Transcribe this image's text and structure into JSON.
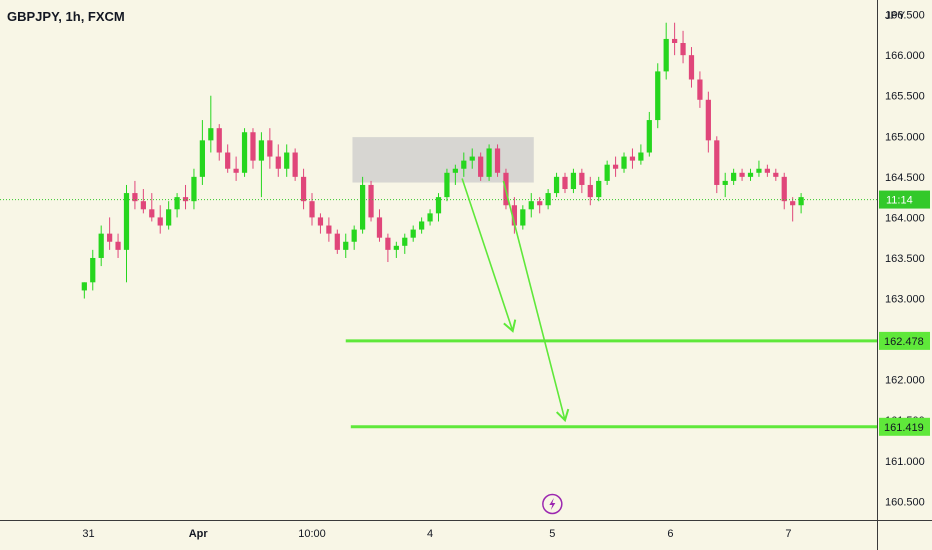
{
  "header": {
    "title": "GBPJPY, 1h, FXCM"
  },
  "icons": {
    "event_marker": "lightning-icon"
  },
  "colors": {
    "background": "#f8f6e6",
    "up": "#26d61e",
    "down": "#e0467a",
    "zone": "#d3d3cf",
    "level_line": "#5fe83a",
    "current_price_line": "#33c92a"
  },
  "chart_data": {
    "type": "candlestick",
    "title": "GBPJPY, 1h, FXCM",
    "ylabel": "JPY",
    "ylim": [
      160.27,
      166.68
    ],
    "yticks": [
      "166.500",
      "166.000",
      "165.500",
      "165.000",
      "164.500",
      "164.000",
      "163.500",
      "163.000",
      "162.500",
      "162.000",
      "161.500",
      "161.000",
      "160.500"
    ],
    "xticks": [
      "31",
      "Apr",
      "10:00",
      "4",
      "5",
      "6",
      "7"
    ],
    "xtick_positions": [
      0.5,
      13.5,
      27,
      41,
      55.5,
      69.5,
      83.5
    ],
    "xlim": [
      -10,
      94
    ],
    "current_price": {
      "label": "11:14",
      "value": 164.22
    },
    "levels": [
      {
        "label": "162.478",
        "value": 162.478,
        "from_x": 31
      },
      {
        "label": "161.419",
        "value": 161.419,
        "from_x": 31.6
      }
    ],
    "zone": {
      "x_start": 31.8,
      "x_end": 53.3,
      "y_low": 164.43,
      "y_high": 164.99
    },
    "arrows": [
      {
        "x1": 44.8,
        "y1": 164.48,
        "x2": 50.8,
        "y2": 162.6
      },
      {
        "x1": 49.7,
        "y1": 164.45,
        "x2": 57,
        "y2": 161.5
      }
    ],
    "event_x": 55.5,
    "candles": [
      {
        "o": 163.1,
        "h": 163.2,
        "l": 163.0,
        "c": 163.2
      },
      {
        "o": 163.2,
        "h": 163.6,
        "l": 163.1,
        "c": 163.5
      },
      {
        "o": 163.5,
        "h": 163.9,
        "l": 163.4,
        "c": 163.8
      },
      {
        "o": 163.8,
        "h": 164.0,
        "l": 163.6,
        "c": 163.7
      },
      {
        "o": 163.7,
        "h": 163.8,
        "l": 163.5,
        "c": 163.6
      },
      {
        "o": 163.6,
        "h": 164.4,
        "l": 163.2,
        "c": 164.3
      },
      {
        "o": 164.3,
        "h": 164.45,
        "l": 164.1,
        "c": 164.2
      },
      {
        "o": 164.2,
        "h": 164.35,
        "l": 164.05,
        "c": 164.1
      },
      {
        "o": 164.1,
        "h": 164.3,
        "l": 163.95,
        "c": 164.0
      },
      {
        "o": 164.0,
        "h": 164.15,
        "l": 163.8,
        "c": 163.9
      },
      {
        "o": 163.9,
        "h": 164.2,
        "l": 163.85,
        "c": 164.1
      },
      {
        "o": 164.1,
        "h": 164.3,
        "l": 164.0,
        "c": 164.25
      },
      {
        "o": 164.25,
        "h": 164.4,
        "l": 164.1,
        "c": 164.2
      },
      {
        "o": 164.2,
        "h": 164.6,
        "l": 164.1,
        "c": 164.5
      },
      {
        "o": 164.5,
        "h": 165.2,
        "l": 164.4,
        "c": 164.95
      },
      {
        "o": 164.95,
        "h": 165.5,
        "l": 164.8,
        "c": 165.1
      },
      {
        "o": 165.1,
        "h": 165.15,
        "l": 164.7,
        "c": 164.8
      },
      {
        "o": 164.8,
        "h": 164.9,
        "l": 164.55,
        "c": 164.6
      },
      {
        "o": 164.6,
        "h": 164.75,
        "l": 164.45,
        "c": 164.55
      },
      {
        "o": 164.55,
        "h": 165.1,
        "l": 164.5,
        "c": 165.05
      },
      {
        "o": 165.05,
        "h": 165.1,
        "l": 164.6,
        "c": 164.7
      },
      {
        "o": 164.7,
        "h": 165.05,
        "l": 164.25,
        "c": 164.95
      },
      {
        "o": 164.95,
        "h": 165.1,
        "l": 164.6,
        "c": 164.75
      },
      {
        "o": 164.75,
        "h": 164.9,
        "l": 164.5,
        "c": 164.6
      },
      {
        "o": 164.6,
        "h": 164.9,
        "l": 164.5,
        "c": 164.8
      },
      {
        "o": 164.8,
        "h": 164.85,
        "l": 164.45,
        "c": 164.5
      },
      {
        "o": 164.5,
        "h": 164.6,
        "l": 164.1,
        "c": 164.2
      },
      {
        "o": 164.2,
        "h": 164.3,
        "l": 163.9,
        "c": 164.0
      },
      {
        "o": 164.0,
        "h": 164.05,
        "l": 163.8,
        "c": 163.9
      },
      {
        "o": 163.9,
        "h": 164.0,
        "l": 163.7,
        "c": 163.8
      },
      {
        "o": 163.8,
        "h": 163.85,
        "l": 163.55,
        "c": 163.6
      },
      {
        "o": 163.6,
        "h": 163.8,
        "l": 163.5,
        "c": 163.7
      },
      {
        "o": 163.7,
        "h": 163.9,
        "l": 163.6,
        "c": 163.85
      },
      {
        "o": 163.85,
        "h": 164.5,
        "l": 163.8,
        "c": 164.4
      },
      {
        "o": 164.4,
        "h": 164.45,
        "l": 163.95,
        "c": 164.0
      },
      {
        "o": 164.0,
        "h": 164.1,
        "l": 163.7,
        "c": 163.75
      },
      {
        "o": 163.75,
        "h": 163.8,
        "l": 163.45,
        "c": 163.6
      },
      {
        "o": 163.6,
        "h": 163.7,
        "l": 163.5,
        "c": 163.65
      },
      {
        "o": 163.65,
        "h": 163.8,
        "l": 163.55,
        "c": 163.75
      },
      {
        "o": 163.75,
        "h": 163.9,
        "l": 163.7,
        "c": 163.85
      },
      {
        "o": 163.85,
        "h": 164.0,
        "l": 163.8,
        "c": 163.95
      },
      {
        "o": 163.95,
        "h": 164.1,
        "l": 163.9,
        "c": 164.05
      },
      {
        "o": 164.05,
        "h": 164.3,
        "l": 163.95,
        "c": 164.25
      },
      {
        "o": 164.25,
        "h": 164.6,
        "l": 164.2,
        "c": 164.55
      },
      {
        "o": 164.55,
        "h": 164.65,
        "l": 164.4,
        "c": 164.6
      },
      {
        "o": 164.6,
        "h": 164.8,
        "l": 164.5,
        "c": 164.7
      },
      {
        "o": 164.7,
        "h": 164.85,
        "l": 164.6,
        "c": 164.75
      },
      {
        "o": 164.75,
        "h": 164.8,
        "l": 164.45,
        "c": 164.5
      },
      {
        "o": 164.5,
        "h": 164.9,
        "l": 164.45,
        "c": 164.85
      },
      {
        "o": 164.85,
        "h": 164.9,
        "l": 164.5,
        "c": 164.55
      },
      {
        "o": 164.55,
        "h": 164.6,
        "l": 164.1,
        "c": 164.15
      },
      {
        "o": 164.15,
        "h": 164.25,
        "l": 163.8,
        "c": 163.9
      },
      {
        "o": 163.9,
        "h": 164.15,
        "l": 163.85,
        "c": 164.1
      },
      {
        "o": 164.1,
        "h": 164.3,
        "l": 164.0,
        "c": 164.2
      },
      {
        "o": 164.2,
        "h": 164.25,
        "l": 164.05,
        "c": 164.15
      },
      {
        "o": 164.15,
        "h": 164.35,
        "l": 164.1,
        "c": 164.3
      },
      {
        "o": 164.3,
        "h": 164.55,
        "l": 164.25,
        "c": 164.5
      },
      {
        "o": 164.5,
        "h": 164.55,
        "l": 164.3,
        "c": 164.35
      },
      {
        "o": 164.35,
        "h": 164.6,
        "l": 164.3,
        "c": 164.55
      },
      {
        "o": 164.55,
        "h": 164.6,
        "l": 164.3,
        "c": 164.4
      },
      {
        "o": 164.4,
        "h": 164.5,
        "l": 164.15,
        "c": 164.25
      },
      {
        "o": 164.25,
        "h": 164.5,
        "l": 164.2,
        "c": 164.45
      },
      {
        "o": 164.45,
        "h": 164.7,
        "l": 164.4,
        "c": 164.65
      },
      {
        "o": 164.65,
        "h": 164.75,
        "l": 164.5,
        "c": 164.6
      },
      {
        "o": 164.6,
        "h": 164.8,
        "l": 164.55,
        "c": 164.75
      },
      {
        "o": 164.75,
        "h": 164.85,
        "l": 164.6,
        "c": 164.7
      },
      {
        "o": 164.7,
        "h": 164.9,
        "l": 164.65,
        "c": 164.8
      },
      {
        "o": 164.8,
        "h": 165.3,
        "l": 164.75,
        "c": 165.2
      },
      {
        "o": 165.2,
        "h": 165.9,
        "l": 165.1,
        "c": 165.8
      },
      {
        "o": 165.8,
        "h": 166.4,
        "l": 165.7,
        "c": 166.2
      },
      {
        "o": 166.2,
        "h": 166.4,
        "l": 166.0,
        "c": 166.15
      },
      {
        "o": 166.15,
        "h": 166.3,
        "l": 165.9,
        "c": 166.0
      },
      {
        "o": 166.0,
        "h": 166.1,
        "l": 165.6,
        "c": 165.7
      },
      {
        "o": 165.7,
        "h": 165.8,
        "l": 165.35,
        "c": 165.45
      },
      {
        "o": 165.45,
        "h": 165.55,
        "l": 164.8,
        "c": 164.95
      },
      {
        "o": 164.95,
        "h": 165.0,
        "l": 164.3,
        "c": 164.4
      },
      {
        "o": 164.4,
        "h": 164.55,
        "l": 164.25,
        "c": 164.45
      },
      {
        "o": 164.45,
        "h": 164.6,
        "l": 164.4,
        "c": 164.55
      },
      {
        "o": 164.55,
        "h": 164.6,
        "l": 164.45,
        "c": 164.5
      },
      {
        "o": 164.5,
        "h": 164.6,
        "l": 164.45,
        "c": 164.55
      },
      {
        "o": 164.55,
        "h": 164.7,
        "l": 164.5,
        "c": 164.6
      },
      {
        "o": 164.6,
        "h": 164.65,
        "l": 164.5,
        "c": 164.55
      },
      {
        "o": 164.55,
        "h": 164.6,
        "l": 164.45,
        "c": 164.5
      },
      {
        "o": 164.5,
        "h": 164.55,
        "l": 164.1,
        "c": 164.2
      },
      {
        "o": 164.2,
        "h": 164.25,
        "l": 163.95,
        "c": 164.15
      },
      {
        "o": 164.15,
        "h": 164.3,
        "l": 164.05,
        "c": 164.25
      }
    ]
  }
}
